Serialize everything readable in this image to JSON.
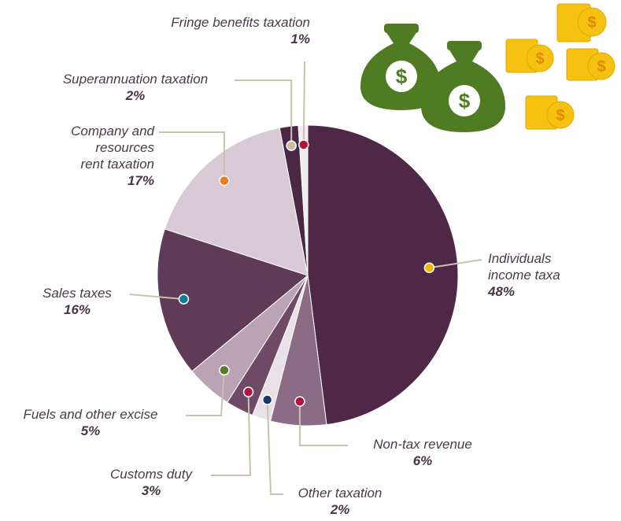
{
  "chart_data": {
    "type": "pie",
    "categories": [
      "Individuals\nincome taxa",
      "Non-tax revenue",
      "Other taxation",
      "Customs duty",
      "Fuels and other excise",
      "Sales taxes",
      "Company and\nresources\nrent taxation",
      "Superannuation taxation",
      "Fringe benefits taxation"
    ],
    "values": [
      48,
      6,
      2,
      3,
      5,
      16,
      17,
      2,
      1
    ],
    "value_labels": [
      "48%",
      "6%",
      "2%",
      "3%",
      "5%",
      "16%",
      "17%",
      "2%",
      "1%"
    ],
    "colors": [
      "#4f2747",
      "#8c6b86",
      "#e9e1e7",
      "#6f4a67",
      "#b9a3b5",
      "#5f3b58",
      "#d9cad5",
      "#4a2844",
      "#f1edf0"
    ],
    "marker_colors": [
      "#f5b400",
      "#b3123a",
      "#173a6b",
      "#b3123a",
      "#587a2a",
      "#0b7c9c",
      "#f07820",
      "#c9bda2",
      "#b3123a"
    ]
  }
}
